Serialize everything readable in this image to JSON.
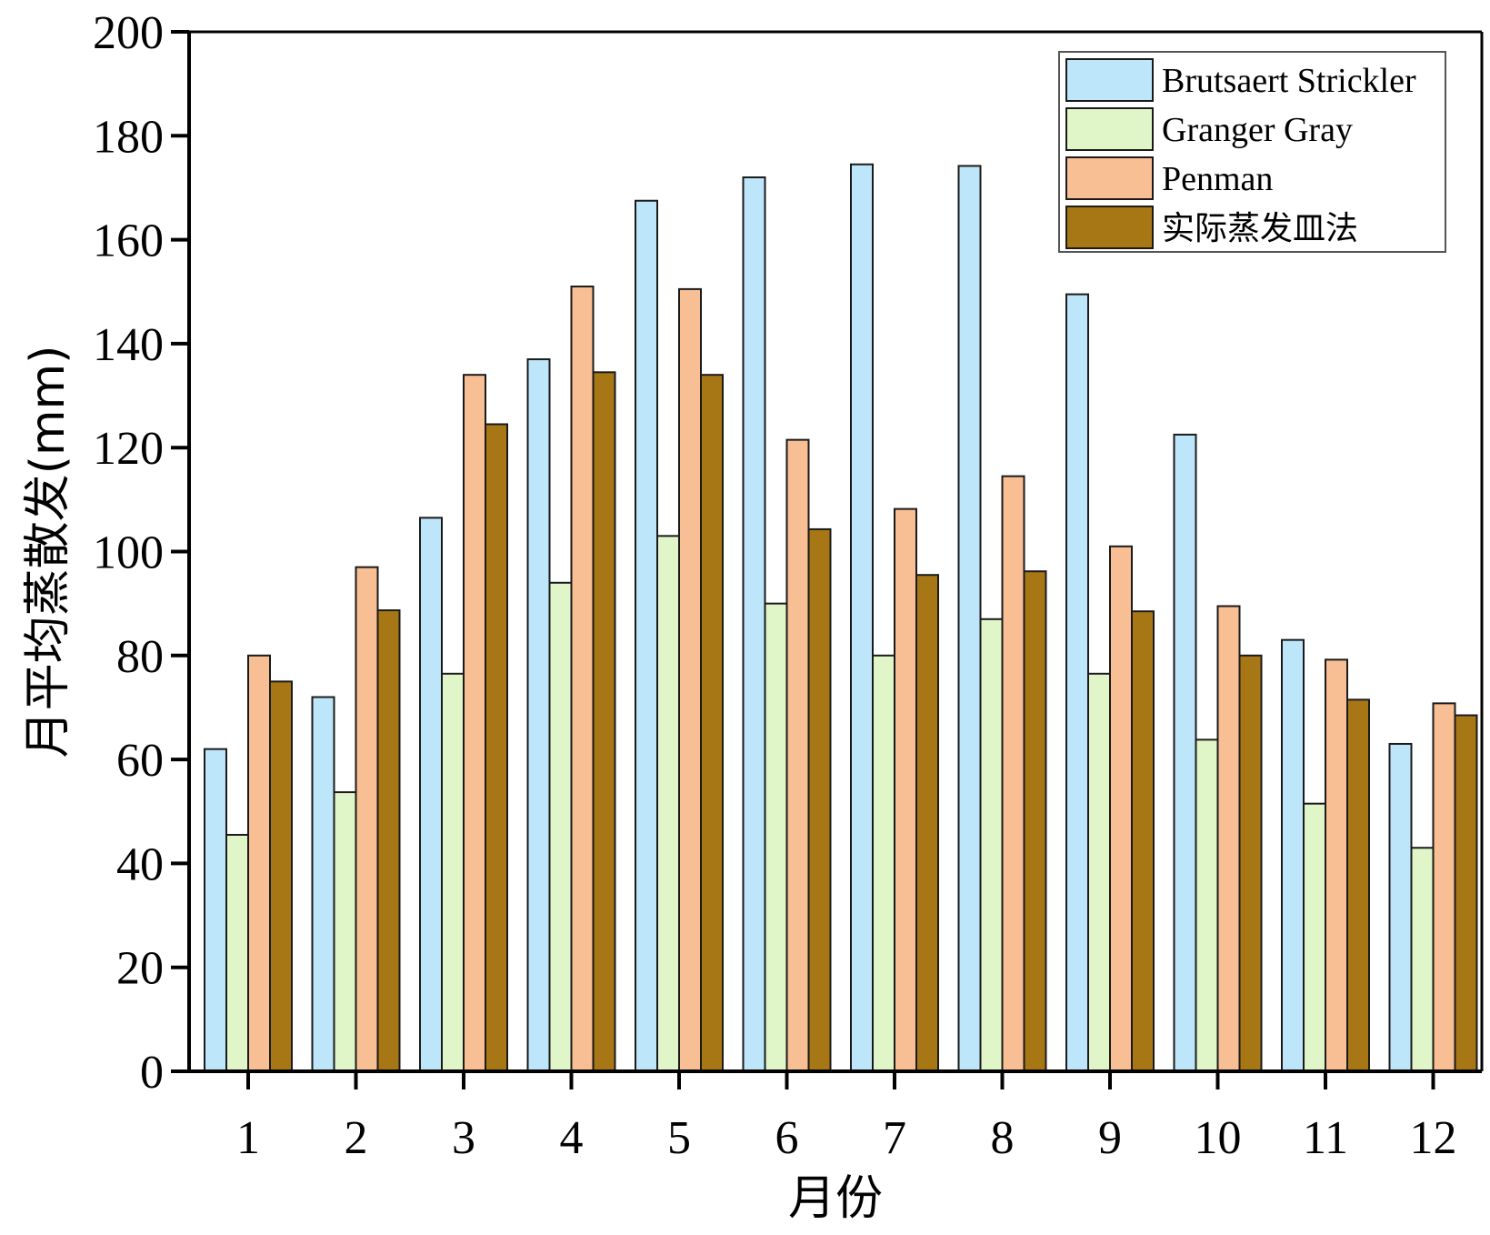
{
  "chart_data": {
    "type": "bar",
    "title": "",
    "xlabel": "月份",
    "ylabel": "月平均蒸散发(mm)",
    "ylim": [
      0,
      200
    ],
    "yticks": [
      0,
      20,
      40,
      60,
      80,
      100,
      120,
      140,
      160,
      180,
      200
    ],
    "categories": [
      "1",
      "2",
      "3",
      "4",
      "5",
      "6",
      "7",
      "8",
      "9",
      "10",
      "11",
      "12"
    ],
    "grid": false,
    "legend_position": "top-right",
    "series": [
      {
        "name": "Brutsaert Strickler",
        "color": "#bde6fb",
        "values": [
          62,
          72,
          106.5,
          137,
          167.5,
          172,
          174.5,
          174.2,
          149.5,
          122.5,
          83,
          63
        ]
      },
      {
        "name": "Granger Gray",
        "color": "#e1f6c8",
        "values": [
          45.5,
          53.7,
          76.5,
          94,
          103,
          90,
          80,
          87,
          76.5,
          63.8,
          51.5,
          43
        ]
      },
      {
        "name": "Penman",
        "color": "#f8be94",
        "values": [
          80,
          97,
          134,
          151,
          150.5,
          121.5,
          108.2,
          114.5,
          101,
          89.5,
          79.2,
          70.8
        ]
      },
      {
        "name": "实际蒸发皿法",
        "color": "#a87715",
        "values": [
          75,
          88.7,
          124.5,
          134.5,
          134,
          104.3,
          95.5,
          96.2,
          88.5,
          80,
          71.5,
          68.5
        ]
      }
    ]
  }
}
